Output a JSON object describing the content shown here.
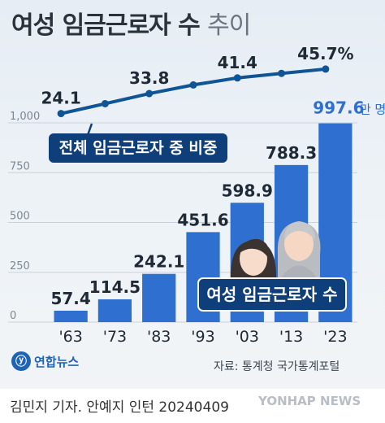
{
  "header": {
    "title_bold": "여성 임금근로자 수",
    "title_light": "추이"
  },
  "chart_data": {
    "type": "bar",
    "categories": [
      "'63",
      "'73",
      "'83",
      "'93",
      "'03",
      "'13",
      "'23"
    ],
    "series": [
      {
        "name": "여성 임금근로자 수",
        "values": [
          57.4,
          114.5,
          242.1,
          451.6,
          598.9,
          788.3,
          997.6
        ],
        "labels": [
          "57.4",
          "114.5",
          "242.1",
          "451.6",
          "598.9",
          "788.3",
          "997.6"
        ],
        "unit": "만 명"
      },
      {
        "name": "전체 임금근로자 중 비중",
        "type": "line",
        "values": [
          24.1,
          28.9,
          33.8,
          38.0,
          41.4,
          43.6,
          45.7
        ],
        "labels": [
          "24.1",
          "",
          "33.8",
          "",
          "41.4",
          "",
          "45.7%"
        ]
      }
    ],
    "yticks": [
      0,
      250,
      500,
      750,
      1000
    ],
    "ytick_labels": [
      "0",
      "250",
      "500",
      "750",
      "1,000"
    ],
    "ylim": [
      0,
      1000
    ],
    "colors": {
      "bar": "#2f6fcf",
      "line": "#0f5494",
      "callout": "#0f3f7a"
    }
  },
  "annotations": {
    "line_callout": "전체 임금근로자 중 비중",
    "bar_callout": "여성 임금근로자 수",
    "unit_suffix": "만 명"
  },
  "footer": {
    "source": "자료: 통계청 국가통계포털",
    "logo_text": "연합뉴스",
    "logo_mark": "ⓨ",
    "byline": "김민지 기자. 안예지 인턴  20240409",
    "watermark": "YONHAP NEWS"
  }
}
